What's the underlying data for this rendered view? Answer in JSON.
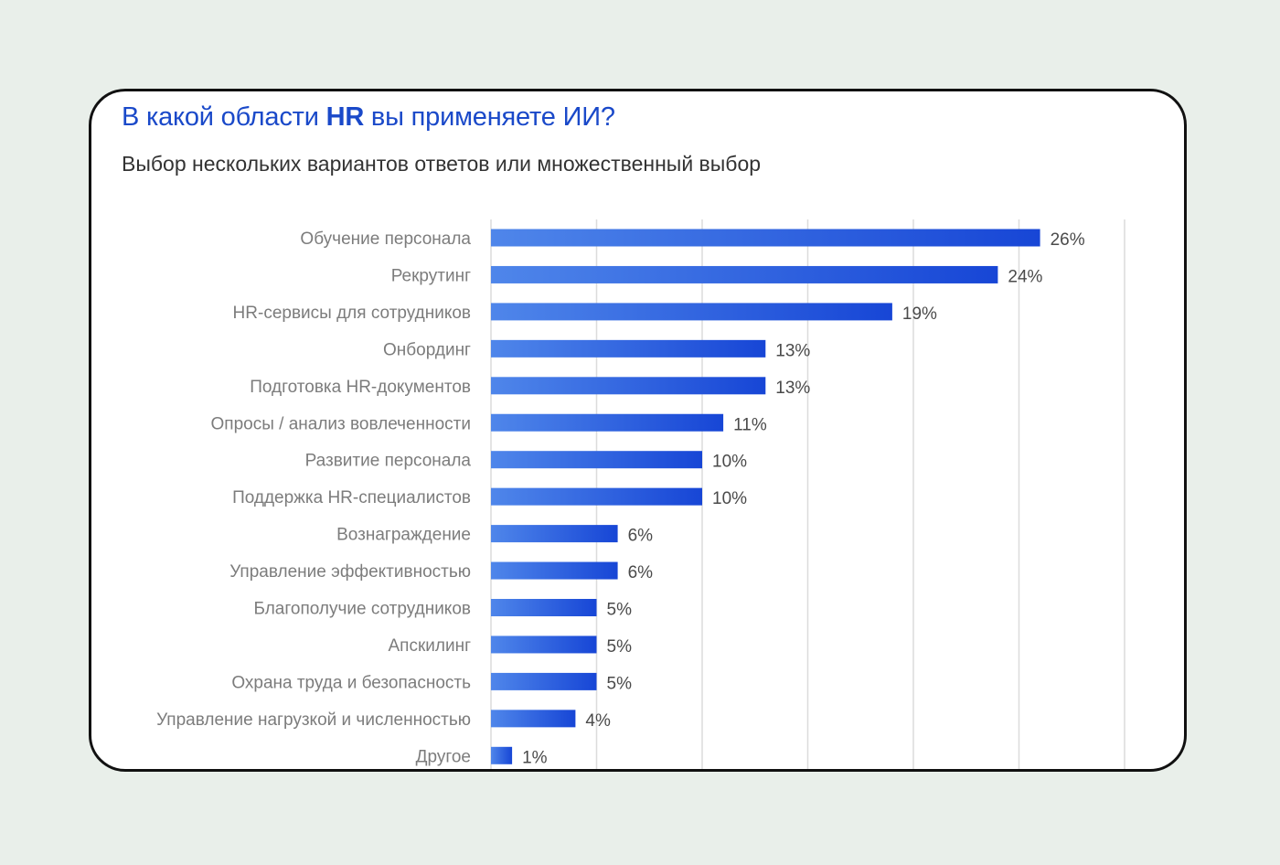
{
  "header": {
    "title_pre": "В какой области ",
    "title_bold": "HR",
    "title_post": " вы применяете ИИ?",
    "subtitle": "Выбор нескольких вариантов ответов или множественный выбор"
  },
  "colors": {
    "bar_start": "#4f86ea",
    "bar_end": "#1746d6",
    "title": "#1a49c9",
    "grid": "#dcdcdc",
    "page_background": "#e9efea"
  },
  "chart_data": {
    "type": "bar",
    "orientation": "horizontal",
    "categories": [
      "Обучение персонала",
      "Рекрутинг",
      "HR-сервисы для сотрудников",
      "Онбординг",
      "Подготовка HR-документов",
      "Опросы / анализ вовлеченности",
      "Развитие персонала",
      "Поддержка HR-специалистов",
      "Вознаграждение",
      "Управление эффективностью",
      "Благополучие сотрудников",
      "Апскилинг",
      "Охрана труда и безопасность",
      "Управление нагрузкой и численностью",
      "Другое"
    ],
    "values": [
      26,
      24,
      19,
      13,
      13,
      11,
      10,
      10,
      6,
      6,
      5,
      5,
      5,
      4,
      1
    ],
    "value_labels": [
      "26%",
      "24%",
      "19%",
      "13%",
      "13%",
      "11%",
      "10%",
      "10%",
      "6%",
      "6%",
      "5%",
      "5%",
      "5%",
      "4%",
      "1%"
    ],
    "xlim": [
      0,
      30
    ],
    "grid": true,
    "grid_step": 5
  }
}
